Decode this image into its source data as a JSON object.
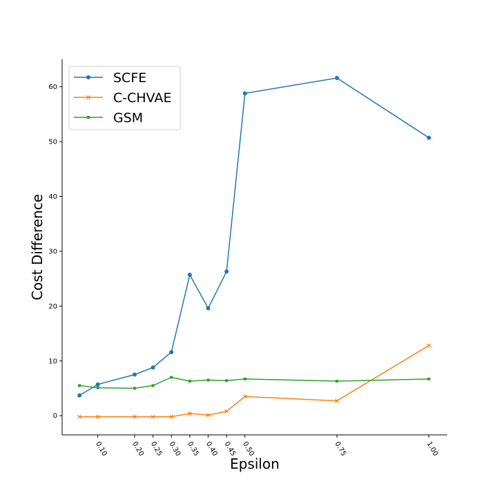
{
  "chart_data": {
    "type": "line",
    "xlabel": "Epsilon",
    "ylabel": "Cost Difference",
    "x": [
      0.05,
      0.1,
      0.2,
      0.25,
      0.3,
      0.35,
      0.4,
      0.45,
      0.5,
      0.75,
      1.0
    ],
    "xticks": [
      0.1,
      0.2,
      0.25,
      0.3,
      0.35,
      0.4,
      0.45,
      0.5,
      0.75,
      1.0
    ],
    "xtick_labels": [
      "0.10",
      "0.20",
      "0.25",
      "0.30",
      "0.35",
      "0.40",
      "0.45",
      "0.50",
      "0.75",
      "1.00"
    ],
    "yticks": [
      0,
      10,
      20,
      30,
      40,
      50,
      60
    ],
    "ytick_labels": [
      "0",
      "10",
      "20",
      "30",
      "40",
      "50",
      "60"
    ],
    "xlim": [
      0.003,
      1.05
    ],
    "ylim": [
      -3.5,
      65
    ],
    "grid": false,
    "legend_position": "top-left",
    "series": [
      {
        "name": "SCFE",
        "marker": "circle",
        "color": "#1f77b4",
        "values": [
          3.7,
          5.7,
          7.5,
          8.8,
          11.6,
          25.7,
          19.6,
          26.3,
          58.8,
          61.6,
          50.7
        ]
      },
      {
        "name": "C-CHVAE",
        "marker": "x",
        "color": "#ff7f0e",
        "values": [
          -0.2,
          -0.2,
          -0.2,
          -0.2,
          -0.2,
          0.4,
          0.1,
          0.8,
          3.5,
          2.7,
          12.8
        ]
      },
      {
        "name": "GSM",
        "marker": "square",
        "color": "#2ca02c",
        "values": [
          5.5,
          5.1,
          5.0,
          5.5,
          7.0,
          6.3,
          6.5,
          6.4,
          6.7,
          6.3,
          6.7
        ]
      }
    ]
  }
}
